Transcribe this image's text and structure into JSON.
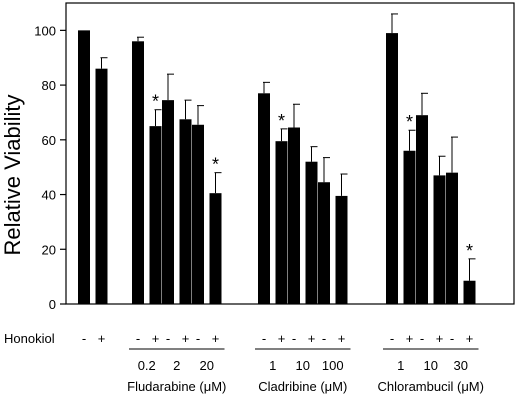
{
  "chart_data": {
    "type": "bar",
    "ylabel": "Relative Viability",
    "ylim": [
      0,
      110
    ],
    "yticks": [
      0,
      20,
      40,
      60,
      80,
      100
    ],
    "grid": false,
    "bar_color": "#000000",
    "groups": [
      {
        "drug": "",
        "doses": [
          {
            "dose": "",
            "bars": [
              {
                "honokiol": "-",
                "value": 100,
                "error": 0,
                "sig": false
              },
              {
                "honokiol": "+",
                "value": 86,
                "error": 4,
                "sig": false
              }
            ]
          }
        ]
      },
      {
        "drug": "Fludarabine (μM)",
        "doses": [
          {
            "dose": "0.2",
            "bars": [
              {
                "honokiol": "-",
                "value": 96,
                "error": 1.5,
                "sig": false
              },
              {
                "honokiol": "+",
                "value": 65,
                "error": 6,
                "sig": true
              }
            ]
          },
          {
            "dose": "2",
            "bars": [
              {
                "honokiol": "-",
                "value": 74.5,
                "error": 9.5,
                "sig": false
              },
              {
                "honokiol": "+",
                "value": 67.5,
                "error": 7,
                "sig": false
              }
            ]
          },
          {
            "dose": "20",
            "bars": [
              {
                "honokiol": "-",
                "value": 65.5,
                "error": 7,
                "sig": false
              },
              {
                "honokiol": "+",
                "value": 40.5,
                "error": 7.5,
                "sig": true
              }
            ]
          }
        ]
      },
      {
        "drug": "Cladribine (μM)",
        "doses": [
          {
            "dose": "1",
            "bars": [
              {
                "honokiol": "-",
                "value": 77,
                "error": 4,
                "sig": false
              },
              {
                "honokiol": "+",
                "value": 59.5,
                "error": 4.5,
                "sig": true
              }
            ]
          },
          {
            "dose": "10",
            "bars": [
              {
                "honokiol": "-",
                "value": 64.5,
                "error": 8.5,
                "sig": false
              },
              {
                "honokiol": "+",
                "value": 52,
                "error": 5.5,
                "sig": false
              }
            ]
          },
          {
            "dose": "100",
            "bars": [
              {
                "honokiol": "-",
                "value": 44.5,
                "error": 9,
                "sig": false
              },
              {
                "honokiol": "+",
                "value": 39.5,
                "error": 8,
                "sig": false
              }
            ]
          }
        ]
      },
      {
        "drug": "Chlorambucil (μM)",
        "doses": [
          {
            "dose": "1",
            "bars": [
              {
                "honokiol": "-",
                "value": 99,
                "error": 7,
                "sig": false
              },
              {
                "honokiol": "+",
                "value": 56,
                "error": 7.5,
                "sig": true
              }
            ]
          },
          {
            "dose": "10",
            "bars": [
              {
                "honokiol": "-",
                "value": 69,
                "error": 8,
                "sig": false
              },
              {
                "honokiol": "+",
                "value": 47,
                "error": 7,
                "sig": false
              }
            ]
          },
          {
            "dose": "30",
            "bars": [
              {
                "honokiol": "-",
                "value": 48,
                "error": 13,
                "sig": false
              },
              {
                "honokiol": "+",
                "value": 8.5,
                "error": 8,
                "sig": true
              }
            ]
          }
        ]
      }
    ],
    "row_label": "Honokiol",
    "significance_marker": "*"
  }
}
